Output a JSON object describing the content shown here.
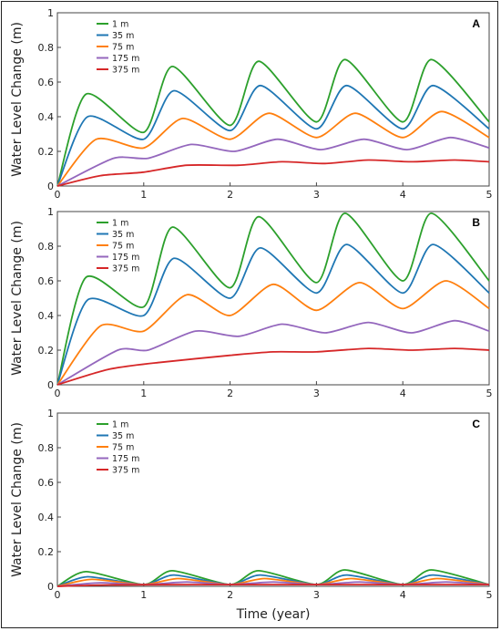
{
  "chart_data": [
    {
      "type": "line",
      "panel_label": "A",
      "ylabel": "Water Level Change (m)",
      "xlabel": "",
      "xlim": [
        0,
        5
      ],
      "ylim": [
        0,
        1
      ],
      "xticks": [
        "0",
        "1",
        "2",
        "3",
        "4",
        "5"
      ],
      "yticks": [
        "0",
        "0.2",
        "0.4",
        "0.6",
        "0.8",
        "1"
      ],
      "legend_position": "top-left",
      "series": [
        {
          "name": "1 m",
          "color": "#2ca02c",
          "points": [
            [
              0,
              0
            ],
            [
              0.33,
              0.53
            ],
            [
              1,
              0.31
            ],
            [
              1.33,
              0.69
            ],
            [
              2,
              0.35
            ],
            [
              2.33,
              0.72
            ],
            [
              3,
              0.37
            ],
            [
              3.33,
              0.73
            ],
            [
              4,
              0.37
            ],
            [
              4.33,
              0.73
            ],
            [
              5,
              0.37
            ]
          ]
        },
        {
          "name": "35 m",
          "color": "#1f77b4",
          "points": [
            [
              0,
              0
            ],
            [
              0.35,
              0.4
            ],
            [
              1,
              0.27
            ],
            [
              1.35,
              0.55
            ],
            [
              2,
              0.32
            ],
            [
              2.35,
              0.58
            ],
            [
              3,
              0.33
            ],
            [
              3.35,
              0.58
            ],
            [
              4,
              0.33
            ],
            [
              4.35,
              0.58
            ],
            [
              5,
              0.33
            ]
          ]
        },
        {
          "name": "75 m",
          "color": "#ff7f0e",
          "points": [
            [
              0,
              0
            ],
            [
              0.45,
              0.27
            ],
            [
              1,
              0.22
            ],
            [
              1.45,
              0.39
            ],
            [
              2,
              0.27
            ],
            [
              2.45,
              0.42
            ],
            [
              3,
              0.28
            ],
            [
              3.45,
              0.42
            ],
            [
              4,
              0.28
            ],
            [
              4.45,
              0.43
            ],
            [
              5,
              0.28
            ]
          ]
        },
        {
          "name": "175 m",
          "color": "#9467bd",
          "points": [
            [
              0,
              0
            ],
            [
              0.65,
              0.16
            ],
            [
              1.05,
              0.16
            ],
            [
              1.55,
              0.24
            ],
            [
              2.05,
              0.2
            ],
            [
              2.55,
              0.27
            ],
            [
              3.05,
              0.21
            ],
            [
              3.55,
              0.27
            ],
            [
              4.05,
              0.21
            ],
            [
              4.55,
              0.28
            ],
            [
              5,
              0.22
            ]
          ]
        },
        {
          "name": "375 m",
          "color": "#d62728",
          "points": [
            [
              0,
              0
            ],
            [
              0.5,
              0.06
            ],
            [
              1,
              0.08
            ],
            [
              1.5,
              0.12
            ],
            [
              2.1,
              0.12
            ],
            [
              2.6,
              0.14
            ],
            [
              3.1,
              0.13
            ],
            [
              3.6,
              0.15
            ],
            [
              4.1,
              0.14
            ],
            [
              4.6,
              0.15
            ],
            [
              5,
              0.14
            ]
          ]
        }
      ]
    },
    {
      "type": "line",
      "panel_label": "B",
      "ylabel": "Water Level Change (m)",
      "xlabel": "",
      "xlim": [
        0,
        5
      ],
      "ylim": [
        0,
        1
      ],
      "xticks": [
        "0",
        "1",
        "2",
        "3",
        "4",
        "5"
      ],
      "yticks": [
        "0",
        "0.2",
        "0.4",
        "0.6",
        "0.8",
        "1"
      ],
      "legend_position": "top-left",
      "series": [
        {
          "name": "1 m",
          "color": "#2ca02c",
          "points": [
            [
              0,
              0
            ],
            [
              0.33,
              0.62
            ],
            [
              1,
              0.45
            ],
            [
              1.33,
              0.91
            ],
            [
              2,
              0.56
            ],
            [
              2.33,
              0.97
            ],
            [
              3,
              0.59
            ],
            [
              3.33,
              0.99
            ],
            [
              4,
              0.6
            ],
            [
              4.33,
              0.99
            ],
            [
              5,
              0.6
            ]
          ]
        },
        {
          "name": "35 m",
          "color": "#1f77b4",
          "points": [
            [
              0,
              0
            ],
            [
              0.35,
              0.49
            ],
            [
              1,
              0.4
            ],
            [
              1.35,
              0.73
            ],
            [
              2,
              0.5
            ],
            [
              2.35,
              0.79
            ],
            [
              3,
              0.53
            ],
            [
              3.35,
              0.81
            ],
            [
              4,
              0.53
            ],
            [
              4.35,
              0.81
            ],
            [
              5,
              0.53
            ]
          ]
        },
        {
          "name": "75 m",
          "color": "#ff7f0e",
          "points": [
            [
              0,
              0
            ],
            [
              0.5,
              0.34
            ],
            [
              1,
              0.31
            ],
            [
              1.5,
              0.52
            ],
            [
              2,
              0.4
            ],
            [
              2.5,
              0.58
            ],
            [
              3,
              0.43
            ],
            [
              3.5,
              0.59
            ],
            [
              4,
              0.44
            ],
            [
              4.5,
              0.6
            ],
            [
              5,
              0.44
            ]
          ]
        },
        {
          "name": "175 m",
          "color": "#9467bd",
          "points": [
            [
              0,
              0
            ],
            [
              0.7,
              0.2
            ],
            [
              1.05,
              0.2
            ],
            [
              1.6,
              0.31
            ],
            [
              2.1,
              0.28
            ],
            [
              2.6,
              0.35
            ],
            [
              3.1,
              0.3
            ],
            [
              3.6,
              0.36
            ],
            [
              4.1,
              0.3
            ],
            [
              4.6,
              0.37
            ],
            [
              5,
              0.31
            ]
          ]
        },
        {
          "name": "375 m",
          "color": "#d62728",
          "points": [
            [
              0,
              0
            ],
            [
              0.6,
              0.09
            ],
            [
              1.2,
              0.13
            ],
            [
              2,
              0.17
            ],
            [
              2.5,
              0.19
            ],
            [
              3,
              0.19
            ],
            [
              3.6,
              0.21
            ],
            [
              4.1,
              0.2
            ],
            [
              4.6,
              0.21
            ],
            [
              5,
              0.2
            ]
          ]
        }
      ]
    },
    {
      "type": "line",
      "panel_label": "C",
      "ylabel": "Water Level Change (m)",
      "xlabel": "Time (year)",
      "xlim": [
        0,
        5
      ],
      "ylim": [
        0,
        1
      ],
      "xticks": [
        "0",
        "1",
        "2",
        "3",
        "4",
        "5"
      ],
      "yticks": [
        "0",
        "0.2",
        "0.4",
        "0.6",
        "0.8",
        "1"
      ],
      "legend_position": "top-left",
      "series": [
        {
          "name": "1 m",
          "color": "#2ca02c",
          "points": [
            [
              0,
              0
            ],
            [
              0.33,
              0.085
            ],
            [
              1,
              0.01
            ],
            [
              1.33,
              0.09
            ],
            [
              2,
              0.01
            ],
            [
              2.33,
              0.09
            ],
            [
              3,
              0.01
            ],
            [
              3.33,
              0.095
            ],
            [
              4,
              0.01
            ],
            [
              4.33,
              0.095
            ],
            [
              5,
              0.01
            ]
          ]
        },
        {
          "name": "35 m",
          "color": "#1f77b4",
          "points": [
            [
              0,
              0
            ],
            [
              0.35,
              0.055
            ],
            [
              1,
              0.01
            ],
            [
              1.35,
              0.065
            ],
            [
              2,
              0.01
            ],
            [
              2.35,
              0.065
            ],
            [
              3,
              0.01
            ],
            [
              3.35,
              0.065
            ],
            [
              4,
              0.01
            ],
            [
              4.35,
              0.065
            ],
            [
              5,
              0.01
            ]
          ]
        },
        {
          "name": "75 m",
          "color": "#ff7f0e",
          "points": [
            [
              0,
              0
            ],
            [
              0.4,
              0.04
            ],
            [
              1,
              0.01
            ],
            [
              1.4,
              0.045
            ],
            [
              2,
              0.01
            ],
            [
              2.4,
              0.045
            ],
            [
              3,
              0.01
            ],
            [
              3.4,
              0.045
            ],
            [
              4,
              0.01
            ],
            [
              4.4,
              0.045
            ],
            [
              5,
              0.01
            ]
          ]
        },
        {
          "name": "175 m",
          "color": "#9467bd",
          "points": [
            [
              0,
              0
            ],
            [
              0.5,
              0.02
            ],
            [
              1,
              0.01
            ],
            [
              1.5,
              0.025
            ],
            [
              2,
              0.01
            ],
            [
              2.5,
              0.025
            ],
            [
              3,
              0.01
            ],
            [
              3.5,
              0.025
            ],
            [
              4,
              0.01
            ],
            [
              4.5,
              0.025
            ],
            [
              5,
              0.01
            ]
          ]
        },
        {
          "name": "375 m",
          "color": "#d62728",
          "points": [
            [
              0,
              0
            ],
            [
              0.6,
              0.008
            ],
            [
              1.6,
              0.01
            ],
            [
              2.6,
              0.01
            ],
            [
              3.6,
              0.01
            ],
            [
              4.6,
              0.01
            ],
            [
              5,
              0.01
            ]
          ]
        }
      ]
    }
  ]
}
